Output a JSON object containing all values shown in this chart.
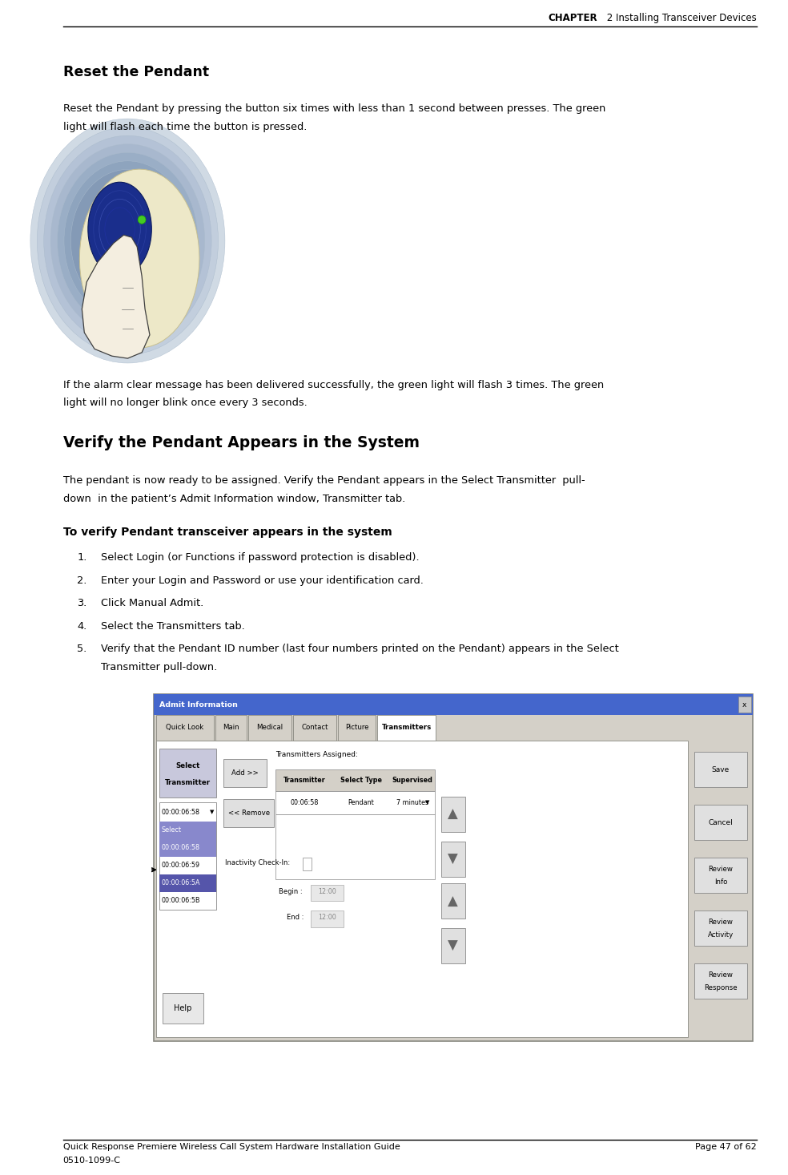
{
  "bg_color": "#ffffff",
  "header_text_bold": "CHAPTER",
  "header_text_normal": " 2 Installing Transceiver Devices",
  "footer_left1": "Quick Response Premiere Wireless Call System Hardware Installation Guide",
  "footer_left2": "0510-1099-C",
  "footer_right": "Page 47 of 62",
  "section1_title": "Reset the Pendant",
  "section1_body1": "Reset the Pendant by pressing the button six times with less than 1 second between presses. The green",
  "section1_body2": "light will flash each time the button is pressed.",
  "section1_note1": "If the alarm clear message has been delivered successfully, the green light will flash 3 times. The green",
  "section1_note2": "light will no longer blink once every 3 seconds.",
  "section2_title": "Verify the Pendant Appears in the System",
  "section2_body1": "The pendant is now ready to be assigned. Verify the Pendant appears in the Select Transmitter  pull-",
  "section2_body2": "down  in the patient’s Admit Information window, Transmitter tab.",
  "section2_bold": "To verify Pendant transceiver appears in the system",
  "steps": [
    "Select Login (or Functions if password protection is disabled).",
    "Enter your Login and Password or use your identification card.",
    "Click Manual Admit.",
    "Select the Transmitters tab.",
    "Verify that the Pendant ID number (last four numbers printed on the Pendant) appears in the Select\nTransmitter pull-down."
  ],
  "ml": 0.08,
  "mr": 0.96
}
